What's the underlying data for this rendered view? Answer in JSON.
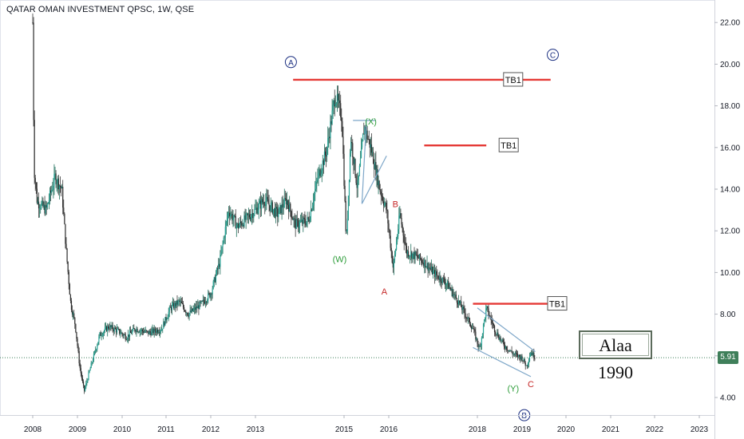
{
  "chart_data": {
    "type": "candlestick",
    "title": "QATAR OMAN INVESTMENT QPSC, 1W, QSE",
    "x_ticks": [
      "2008",
      "2009",
      "2010",
      "2011",
      "2012",
      "2013",
      "2015",
      "2016",
      "2018",
      "2019",
      "2020",
      "2021",
      "2022",
      "2023"
    ],
    "y_ticks": [
      "4.00",
      "6.00",
      "8.00",
      "10.00",
      "12.00",
      "14.00",
      "16.00",
      "18.00",
      "20.00",
      "22.00"
    ],
    "ylim": [
      3.5,
      22.8
    ],
    "last_price": 5.91,
    "last_price_label": "5.91",
    "price_path": [
      [
        2008.0,
        22.0
      ],
      [
        2008.03,
        15.0
      ],
      [
        2008.1,
        13.4
      ],
      [
        2008.3,
        13.0
      ],
      [
        2008.5,
        14.6
      ],
      [
        2008.65,
        14.0
      ],
      [
        2008.75,
        11.0
      ],
      [
        2008.85,
        8.5
      ],
      [
        2008.95,
        7.5
      ],
      [
        2009.05,
        5.5
      ],
      [
        2009.15,
        4.3
      ],
      [
        2009.3,
        5.5
      ],
      [
        2009.5,
        7.0
      ],
      [
        2009.7,
        7.4
      ],
      [
        2009.9,
        7.2
      ],
      [
        2010.1,
        6.9
      ],
      [
        2010.3,
        7.3
      ],
      [
        2010.6,
        7.1
      ],
      [
        2010.9,
        7.3
      ],
      [
        2011.1,
        8.3
      ],
      [
        2011.3,
        8.6
      ],
      [
        2011.5,
        8.0
      ],
      [
        2011.8,
        8.5
      ],
      [
        2012.0,
        9.0
      ],
      [
        2012.2,
        10.5
      ],
      [
        2012.4,
        13.0
      ],
      [
        2012.6,
        12.2
      ],
      [
        2012.8,
        12.6
      ],
      [
        2013.0,
        13.0
      ],
      [
        2013.2,
        13.5
      ],
      [
        2013.5,
        12.8
      ],
      [
        2013.7,
        13.5
      ],
      [
        2013.9,
        12.3
      ],
      [
        2014.2,
        12.5
      ],
      [
        2014.4,
        14.5
      ],
      [
        2014.6,
        15.8
      ],
      [
        2014.8,
        18.5
      ],
      [
        2014.95,
        17.5
      ],
      [
        2015.05,
        11.4
      ],
      [
        2015.15,
        16.5
      ],
      [
        2015.3,
        14.0
      ],
      [
        2015.45,
        17.0
      ],
      [
        2015.6,
        16.0
      ],
      [
        2015.8,
        14.0
      ],
      [
        2015.95,
        13.0
      ],
      [
        2016.1,
        10.2
      ],
      [
        2016.25,
        12.8
      ],
      [
        2016.4,
        11.0
      ],
      [
        2016.6,
        10.8
      ],
      [
        2016.8,
        10.5
      ],
      [
        2017.0,
        10.0
      ],
      [
        2017.3,
        9.5
      ],
      [
        2017.6,
        8.5
      ],
      [
        2017.9,
        7.3
      ],
      [
        2018.05,
        6.3
      ],
      [
        2018.2,
        8.3
      ],
      [
        2018.4,
        7.2
      ],
      [
        2018.6,
        6.5
      ],
      [
        2018.8,
        6.1
      ],
      [
        2019.0,
        5.9
      ],
      [
        2019.1,
        5.5
      ],
      [
        2019.2,
        6.2
      ],
      [
        2019.3,
        5.91
      ]
    ],
    "annotations": [
      {
        "text": "A",
        "x": 2013.8,
        "y": 20.1,
        "style": "circled",
        "color": "#1b2f80"
      },
      {
        "text": "C",
        "x": 2019.7,
        "y": 20.45,
        "style": "circled",
        "color": "#1b2f80"
      },
      {
        "text": "B",
        "x": 2019.05,
        "y": 3.15,
        "style": "circled",
        "color": "#1b2f80"
      },
      {
        "text": "(X)",
        "x": 2015.6,
        "y": 17.25,
        "style": "plain",
        "color": "#2e9d3a"
      },
      {
        "text": "(W)",
        "x": 2014.9,
        "y": 10.65,
        "style": "plain",
        "color": "#2e9d3a"
      },
      {
        "text": "(Y)",
        "x": 2018.8,
        "y": 4.45,
        "style": "plain",
        "color": "#2e9d3a"
      },
      {
        "text": "B",
        "x": 2016.15,
        "y": 13.3,
        "style": "plain",
        "color": "#c62828"
      },
      {
        "text": "A",
        "x": 2015.9,
        "y": 9.1,
        "style": "plain",
        "color": "#c62828"
      },
      {
        "text": "C",
        "x": 2019.2,
        "y": 4.65,
        "style": "plain",
        "color": "#c62828"
      }
    ],
    "target_lines": [
      {
        "x1": 2013.85,
        "x2": 2019.65,
        "y": 19.25,
        "label": "TB1",
        "label_x": 2018.8
      },
      {
        "x1": 2016.8,
        "x2": 2018.2,
        "y": 16.1,
        "label": "TB1",
        "label_x": 2018.7
      },
      {
        "x1": 2017.9,
        "x2": 2019.6,
        "y": 8.5,
        "label": "TB1",
        "label_x": 2019.8
      }
    ],
    "watermark": "Alaa 1990"
  }
}
